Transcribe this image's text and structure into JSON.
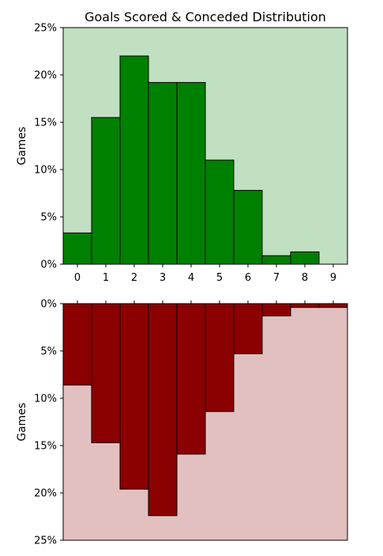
{
  "chart_data": [
    {
      "type": "bar",
      "title": "Goals Scored & Conceded Distribution",
      "xlabel": "",
      "ylabel": "Games",
      "categories": [
        "0",
        "1",
        "2",
        "3",
        "4",
        "5",
        "6",
        "7",
        "8",
        "9"
      ],
      "values": [
        3.3,
        15.5,
        22.0,
        19.2,
        19.2,
        11.0,
        7.8,
        0.9,
        1.3,
        0.0
      ],
      "ylim": [
        0,
        25
      ],
      "yticks": [
        "0%",
        "5%",
        "10%",
        "15%",
        "20%",
        "25%"
      ],
      "bar_color": "#008000",
      "background": "#c1dfc1",
      "grid": false
    },
    {
      "type": "bar",
      "xlabel": "",
      "ylabel": "Games",
      "categories": [
        "0",
        "1",
        "2",
        "3",
        "4",
        "5",
        "6",
        "7",
        "8",
        "9"
      ],
      "values": [
        8.6,
        14.7,
        19.6,
        22.4,
        15.9,
        11.4,
        5.3,
        1.3,
        0.4,
        0.4
      ],
      "ylim": [
        0,
        25
      ],
      "inverted_y": true,
      "yticks": [
        "0%",
        "5%",
        "10%",
        "15%",
        "20%",
        "25%"
      ],
      "bar_color": "#8b0000",
      "background": "#e2c0c0",
      "grid": false
    }
  ]
}
